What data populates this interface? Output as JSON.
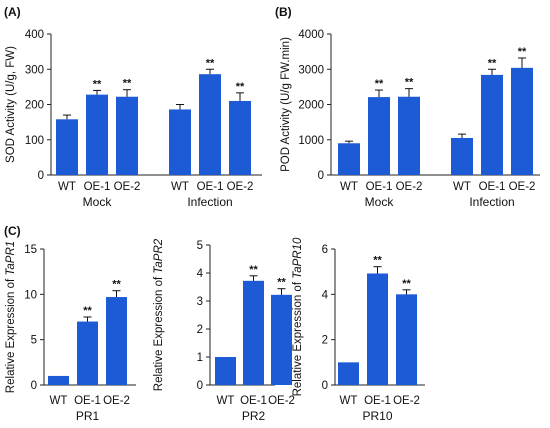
{
  "chart_data": [
    {
      "type": "bar",
      "panel": "(A)",
      "ylabel": "SOD Activity (U/g, FW)",
      "ylim": [
        0,
        400
      ],
      "yticks": [
        0,
        100,
        200,
        300,
        400
      ],
      "groups": [
        {
          "label": "Mock",
          "categories": [
            "WT",
            "OE-1",
            "OE-2"
          ],
          "values": [
            158,
            228,
            222
          ],
          "errors": [
            12,
            12,
            20
          ],
          "significance": [
            "",
            "**",
            "**"
          ]
        },
        {
          "label": "Infection",
          "categories": [
            "WT",
            "OE-1",
            "OE-2"
          ],
          "values": [
            186,
            286,
            210
          ],
          "errors": [
            14,
            14,
            23
          ],
          "significance": [
            "",
            "**",
            "**"
          ]
        }
      ],
      "bar_color": "#1d5ad6"
    },
    {
      "type": "bar",
      "panel": "(B)",
      "ylabel": "POD Activity (U/g FW.min)",
      "ylim": [
        0,
        4000
      ],
      "yticks": [
        0,
        1000,
        2000,
        3000,
        4000
      ],
      "groups": [
        {
          "label": "Mock",
          "categories": [
            "WT",
            "OE-1",
            "OE-2"
          ],
          "values": [
            900,
            2210,
            2220
          ],
          "errors": [
            60,
            200,
            230
          ],
          "significance": [
            "",
            "**",
            "**"
          ]
        },
        {
          "label": "Infection",
          "categories": [
            "WT",
            "OE-1",
            "OE-2"
          ],
          "values": [
            1050,
            2840,
            3040
          ],
          "errors": [
            110,
            160,
            280
          ],
          "significance": [
            "",
            "**",
            "**"
          ]
        }
      ],
      "bar_color": "#1d5ad6"
    },
    {
      "type": "bar",
      "panel": "(C)",
      "ylabel_prefix": "Relative Expression of ",
      "ylabel_gene": "TaPR1",
      "ylim": [
        0,
        15
      ],
      "yticks": [
        0,
        5,
        10,
        15
      ],
      "groups": [
        {
          "label": "PR1",
          "categories": [
            "WT",
            "OE-1",
            "OE-2"
          ],
          "values": [
            1,
            7,
            9.7
          ],
          "errors": [
            0,
            0.5,
            0.7
          ],
          "significance": [
            "",
            "**",
            "**"
          ]
        }
      ],
      "bar_color": "#1d5ad6"
    },
    {
      "type": "bar",
      "panel": "",
      "ylabel_prefix": "Relative Expression of ",
      "ylabel_gene": "TaPR2",
      "ylim": [
        0,
        5
      ],
      "yticks": [
        0,
        1,
        2,
        3,
        4,
        5
      ],
      "groups": [
        {
          "label": "PR2",
          "categories": [
            "WT",
            "OE-1",
            "OE-2"
          ],
          "values": [
            1,
            3.72,
            3.22
          ],
          "errors": [
            0,
            0.18,
            0.22
          ],
          "significance": [
            "",
            "**",
            "**"
          ]
        }
      ],
      "bar_color": "#1d5ad6"
    },
    {
      "type": "bar",
      "panel": "",
      "ylabel_prefix": "Relative Expression of ",
      "ylabel_gene": "TaPR10",
      "ylim": [
        0,
        6
      ],
      "yticks": [
        0,
        2,
        4,
        6
      ],
      "groups": [
        {
          "label": "PR10",
          "categories": [
            "WT",
            "OE-1",
            "OE-2"
          ],
          "values": [
            1,
            4.92,
            4.0
          ],
          "errors": [
            0,
            0.3,
            0.2
          ],
          "significance": [
            "",
            "**",
            "**"
          ]
        }
      ],
      "bar_color": "#1d5ad6"
    }
  ]
}
